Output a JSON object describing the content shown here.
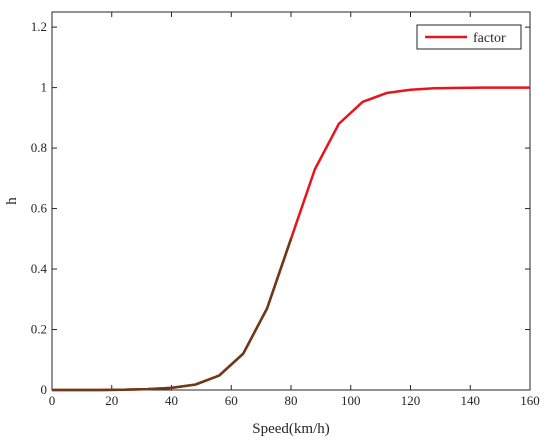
{
  "chart_data": {
    "type": "line",
    "xlabel": "Speed(km/h)",
    "ylabel": "h",
    "xlim": [
      0,
      160
    ],
    "ylim": [
      0,
      1.25
    ],
    "xticks": [
      0,
      20,
      40,
      60,
      80,
      100,
      120,
      140,
      160
    ],
    "yticks": [
      0,
      0.2,
      0.4,
      0.6,
      0.8,
      1,
      1.2
    ],
    "ytick_labels": [
      "0",
      "0.2",
      "0.4",
      "0.6",
      "0.8",
      "1",
      "1.2"
    ],
    "grid": false,
    "legend_position": "top-right",
    "series": [
      {
        "name": "factor",
        "color": "#e8141b",
        "x": [
          0,
          8,
          16,
          24,
          32,
          40,
          48,
          56,
          64,
          72,
          80,
          88,
          96,
          104,
          112,
          120,
          128,
          136,
          144,
          152,
          160
        ],
        "y": [
          0.0,
          0.0,
          0.0,
          0.001,
          0.003,
          0.007,
          0.018,
          0.048,
          0.12,
          0.27,
          0.5,
          0.73,
          0.88,
          0.953,
          0.982,
          0.993,
          0.998,
          0.999,
          1.0,
          1.0,
          1.0
        ]
      }
    ],
    "overlay_color": "#6b3a1a",
    "overlay_x_max": 80
  }
}
